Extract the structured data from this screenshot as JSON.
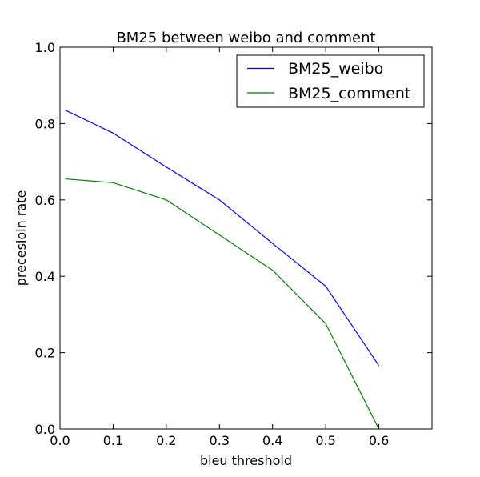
{
  "chart_data": {
    "type": "line",
    "title": "BM25 between weibo and comment",
    "xlabel": "bleu threshold",
    "ylabel": "precesioin rate",
    "xlim": [
      0.0,
      0.7
    ],
    "ylim": [
      0.0,
      1.0
    ],
    "x_ticks": [
      "0.0",
      "0.1",
      "0.2",
      "0.3",
      "0.4",
      "0.5",
      "0.6"
    ],
    "y_ticks": [
      "0.0",
      "0.2",
      "0.4",
      "0.6",
      "0.8",
      "1.0"
    ],
    "grid": false,
    "legend_position": "top-right",
    "x": [
      0.01,
      0.1,
      0.2,
      0.3,
      0.4,
      0.5,
      0.6
    ],
    "series": [
      {
        "name": "BM25_weibo",
        "color": "#0000ff",
        "values": [
          0.835,
          0.775,
          0.686,
          0.6,
          0.486,
          0.374,
          0.166
        ]
      },
      {
        "name": "BM25_comment",
        "color": "#008000",
        "values": [
          0.655,
          0.645,
          0.6,
          0.508,
          0.416,
          0.276,
          0.0
        ]
      }
    ]
  }
}
